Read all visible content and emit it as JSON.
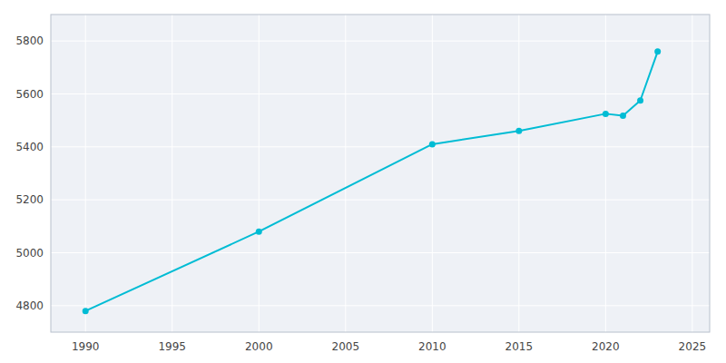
{
  "chart_data": {
    "type": "line",
    "x": [
      1990,
      2000,
      2010,
      2015,
      2020,
      2021,
      2022,
      2023
    ],
    "values": [
      4780,
      5080,
      5410,
      5460,
      5525,
      5518,
      5575,
      5760
    ],
    "color": "#00BCD4",
    "marker": "circle",
    "xlim": [
      1988,
      2026
    ],
    "ylim": [
      4700,
      5900
    ],
    "xticks": [
      1990,
      1995,
      2000,
      2005,
      2010,
      2015,
      2020,
      2025
    ],
    "yticks": [
      4800,
      5000,
      5200,
      5400,
      5600,
      5800
    ],
    "grid": true
  }
}
